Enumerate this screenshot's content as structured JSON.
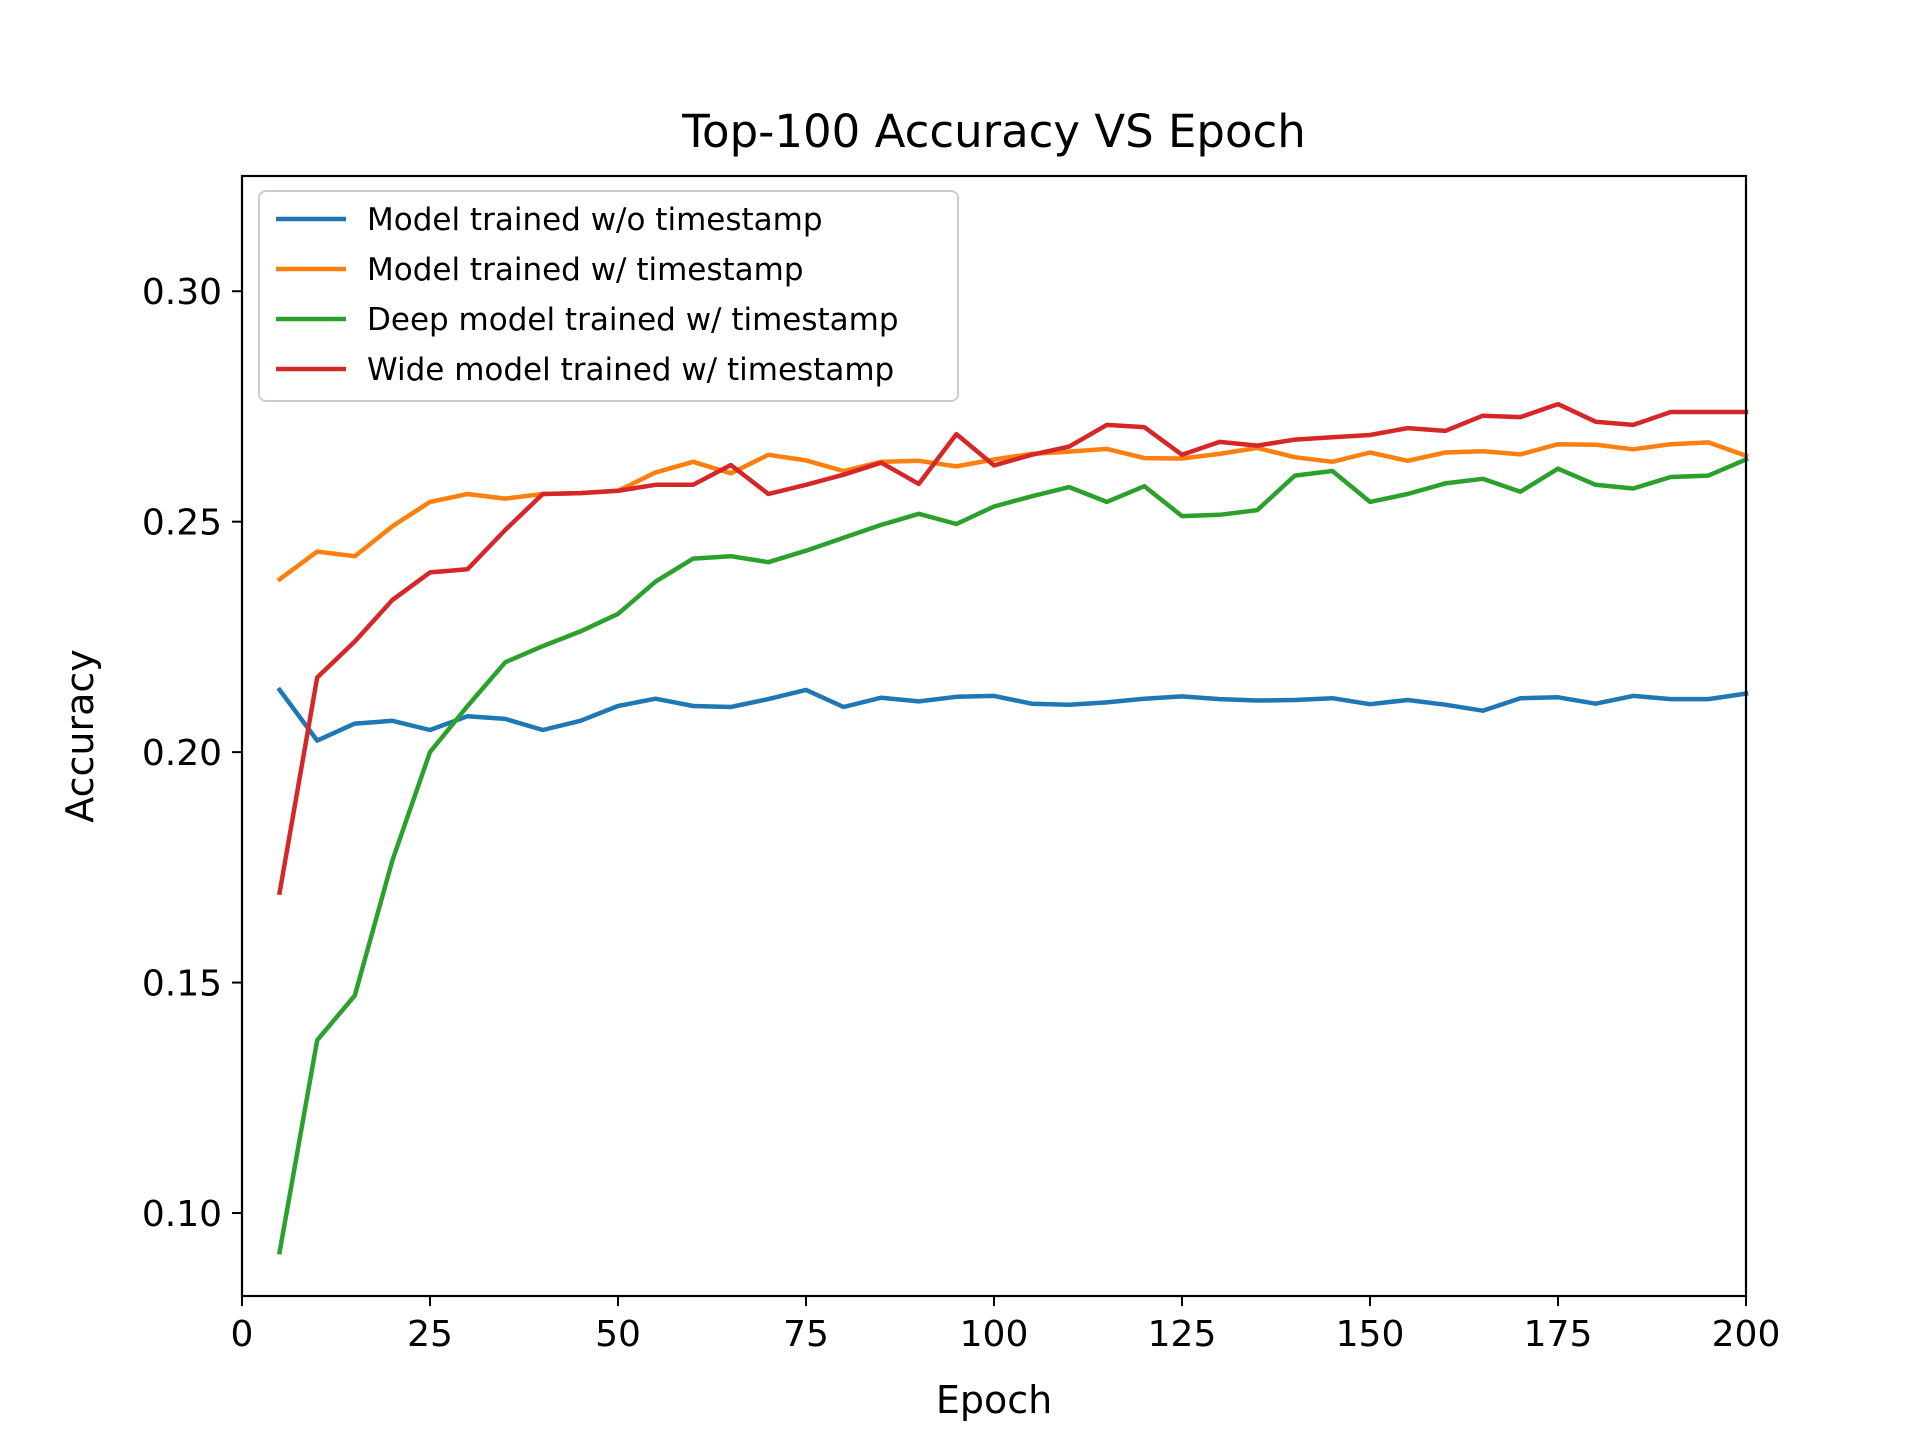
{
  "chart_data": {
    "type": "line",
    "title": "Top-100 Accuracy VS Epoch",
    "xlabel": "Epoch",
    "ylabel": "Accuracy",
    "xlim": [
      0,
      200
    ],
    "ylim": [
      0.082,
      0.325
    ],
    "xticks": [
      0,
      25,
      50,
      75,
      100,
      125,
      150,
      175,
      200
    ],
    "xtick_labels": [
      "0",
      "25",
      "50",
      "75",
      "100",
      "125",
      "150",
      "175",
      "200"
    ],
    "yticks": [
      0.1,
      0.15,
      0.2,
      0.25,
      0.3
    ],
    "ytick_labels": [
      "0.10",
      "0.15",
      "0.20",
      "0.25",
      "0.30"
    ],
    "grid": false,
    "legend_position": "top-left",
    "x": [
      5,
      10,
      15,
      20,
      25,
      30,
      35,
      40,
      45,
      50,
      55,
      60,
      65,
      70,
      75,
      80,
      85,
      90,
      95,
      100,
      105,
      110,
      115,
      120,
      125,
      130,
      135,
      140,
      145,
      150,
      155,
      160,
      165,
      170,
      175,
      180,
      185,
      190,
      195,
      200
    ],
    "series": [
      {
        "name": "Model trained w/o timestamp",
        "color": "#1f77b4",
        "values": [
          0.2135,
          0.2025,
          0.2062,
          0.2068,
          0.2048,
          0.2078,
          0.2072,
          0.2048,
          0.2068,
          0.21,
          0.2116,
          0.21,
          0.2098,
          0.2115,
          0.2135,
          0.2098,
          0.2118,
          0.211,
          0.212,
          0.2122,
          0.2105,
          0.2103,
          0.2108,
          0.2116,
          0.2121,
          0.2115,
          0.2112,
          0.2113,
          0.2117,
          0.2104,
          0.2113,
          0.2103,
          0.209,
          0.2117,
          0.2119,
          0.2105,
          0.2122,
          0.2115,
          0.2115,
          0.2127
        ]
      },
      {
        "name": "Model trained w/ timestamp",
        "color": "#ff7f0e",
        "values": [
          0.2375,
          0.2435,
          0.2425,
          0.249,
          0.2543,
          0.256,
          0.255,
          0.256,
          0.2562,
          0.2567,
          0.2607,
          0.263,
          0.2605,
          0.2645,
          0.2633,
          0.261,
          0.263,
          0.2632,
          0.262,
          0.2635,
          0.2647,
          0.2652,
          0.2658,
          0.2638,
          0.2637,
          0.2647,
          0.266,
          0.264,
          0.263,
          0.265,
          0.2632,
          0.265,
          0.2653,
          0.2646,
          0.2668,
          0.2667,
          0.2657,
          0.2668,
          0.2672,
          0.2643
        ]
      },
      {
        "name": "Deep model trained w/ timestamp",
        "color": "#2ca02c",
        "values": [
          0.0915,
          0.1375,
          0.1472,
          0.1765,
          0.2,
          0.21,
          0.2195,
          0.223,
          0.2262,
          0.23,
          0.237,
          0.242,
          0.2425,
          0.2412,
          0.2437,
          0.2465,
          0.2493,
          0.2517,
          0.2495,
          0.2533,
          0.2555,
          0.2575,
          0.2543,
          0.2577,
          0.2512,
          0.2515,
          0.2525,
          0.26,
          0.261,
          0.2543,
          0.256,
          0.2583,
          0.2593,
          0.2565,
          0.2615,
          0.258,
          0.2572,
          0.2597,
          0.26,
          0.2635
        ]
      },
      {
        "name": "Wide model trained w/ timestamp",
        "color": "#d62728",
        "values": [
          0.1695,
          0.2162,
          0.224,
          0.233,
          0.239,
          0.2397,
          0.2482,
          0.256,
          0.2562,
          0.2567,
          0.258,
          0.258,
          0.2623,
          0.256,
          0.258,
          0.2602,
          0.2628,
          0.2582,
          0.269,
          0.2622,
          0.2645,
          0.2663,
          0.271,
          0.2705,
          0.2645,
          0.2673,
          0.2665,
          0.2678,
          0.2683,
          0.2688,
          0.2703,
          0.2697,
          0.273,
          0.2727,
          0.2755,
          0.2717,
          0.271,
          0.2738,
          0.2738,
          0.2738
        ]
      }
    ]
  }
}
